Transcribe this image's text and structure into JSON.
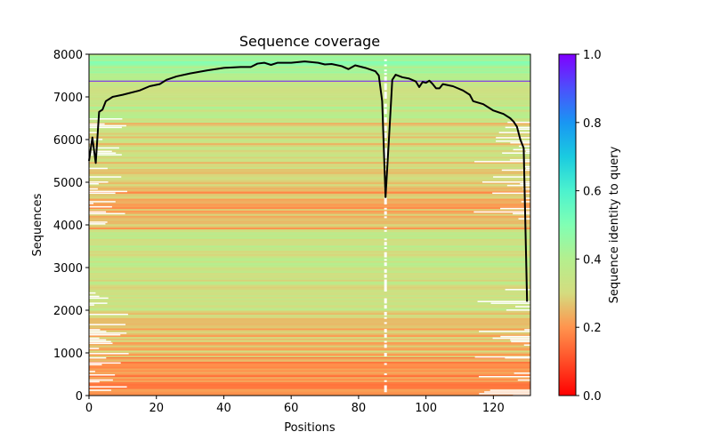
{
  "chart_data": {
    "type": "heatmap",
    "title": "Sequence coverage",
    "xlabel": "Positions",
    "ylabel": "Sequences",
    "xlim": [
      0,
      131
    ],
    "ylim": [
      0,
      8000
    ],
    "xticks": [
      "0",
      "20",
      "40",
      "60",
      "80",
      "100",
      "120"
    ],
    "yticks": [
      "0",
      "1000",
      "2000",
      "3000",
      "4000",
      "5000",
      "6000",
      "7000",
      "8000"
    ],
    "colorbar": {
      "label": "Sequence identity to query",
      "range": [
        0.0,
        1.0
      ],
      "ticks": [
        "0.0",
        "0.2",
        "0.4",
        "0.6",
        "0.8",
        "1.0"
      ],
      "colormap": "rainbow_r"
    },
    "query_line": {
      "y": 7370,
      "identity": 1.0
    },
    "identity_bands": [
      {
        "from": 0,
        "to": 900,
        "identity": 0.2
      },
      {
        "from": 900,
        "to": 2000,
        "identity": 0.26
      },
      {
        "from": 2000,
        "to": 3900,
        "identity": 0.34
      },
      {
        "from": 3900,
        "to": 4800,
        "identity": 0.24
      },
      {
        "from": 4800,
        "to": 6500,
        "identity": 0.3
      },
      {
        "from": 6500,
        "to": 7400,
        "identity": 0.36
      },
      {
        "from": 7400,
        "to": 8000,
        "identity": 0.44
      }
    ],
    "coverage_line": {
      "name": "coverage",
      "color": "#000000",
      "x": [
        0,
        1,
        2,
        3,
        4,
        5,
        7,
        10,
        15,
        18,
        21,
        23,
        26,
        30,
        35,
        40,
        45,
        48,
        50,
        52,
        54,
        56,
        60,
        64,
        68,
        70,
        72,
        75,
        77,
        79,
        82,
        85,
        86,
        87,
        88,
        89,
        90,
        91,
        93,
        95,
        97,
        98,
        99,
        100,
        101,
        102,
        103,
        104,
        105,
        108,
        111,
        113,
        114,
        117,
        120,
        123,
        125,
        126,
        127,
        128,
        129,
        130
      ],
      "y": [
        5500,
        6050,
        5450,
        6650,
        6700,
        6900,
        7000,
        7050,
        7150,
        7250,
        7300,
        7400,
        7480,
        7550,
        7620,
        7680,
        7700,
        7700,
        7780,
        7800,
        7750,
        7800,
        7800,
        7830,
        7800,
        7760,
        7770,
        7720,
        7650,
        7740,
        7680,
        7600,
        7500,
        6900,
        4650,
        6000,
        7400,
        7520,
        7460,
        7430,
        7360,
        7230,
        7350,
        7330,
        7380,
        7300,
        7200,
        7200,
        7300,
        7250,
        7150,
        7050,
        6900,
        6830,
        6680,
        6600,
        6500,
        6420,
        6300,
        6000,
        5800,
        2200
      ]
    }
  }
}
